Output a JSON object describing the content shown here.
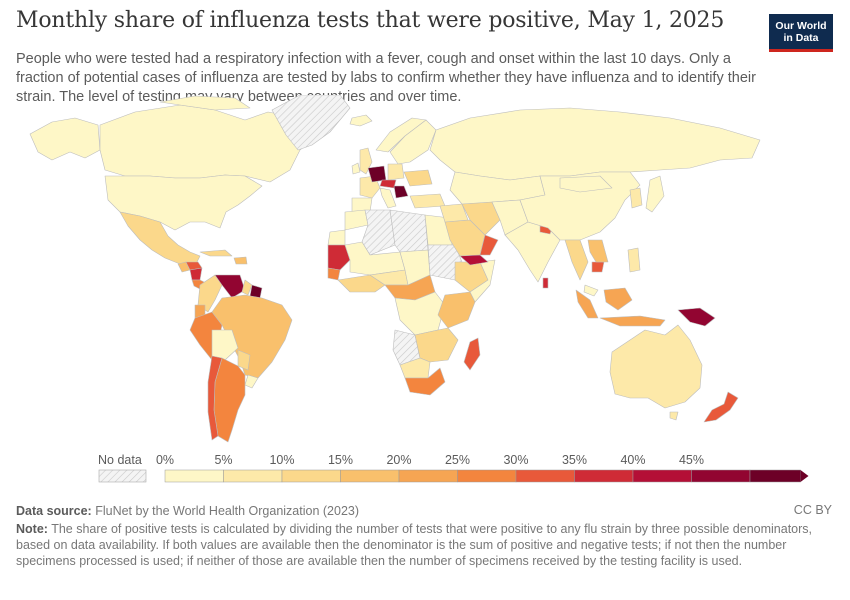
{
  "header": {
    "title": "Monthly share of influenza tests that were positive, May 1, 2025",
    "subtitle": "People who were tested had a respiratory infection with a fever, cough and onset within the last 10 days. Only a fraction of potential cases of influenza are tested by labs to confirm whether they have influenza and to identify their strain. The level of testing may vary between countries and over time."
  },
  "logo": {
    "line1": "Our World",
    "line2": "in Data"
  },
  "legend": {
    "no_data_label": "No data",
    "ticks": [
      "0%",
      "5%",
      "10%",
      "15%",
      "20%",
      "25%",
      "30%",
      "35%",
      "40%",
      "45%"
    ],
    "colors": [
      "#fef7c7",
      "#fde9a9",
      "#fbd88b",
      "#f9c06c",
      "#f6a553",
      "#f3853e",
      "#e8593a",
      "#cf2b36",
      "#b40f36",
      "#920531",
      "#6d0027"
    ],
    "no_data_color": "#f2f2f2"
  },
  "footer": {
    "source_label": "Data source:",
    "source_text": "FluNet by the World Health Organization (2023)",
    "license": "CC BY",
    "note_label": "Note:",
    "note_text": "The share of positive tests is calculated by dividing the number of tests that were positive to any flu strain by three possible denominators, based on data availability. If both values are available then the denominator is the sum of positive and negative tests; if not then the number specimens processed is used; if neither of those are available then the number of specimens received by the testing facility is used."
  }
}
